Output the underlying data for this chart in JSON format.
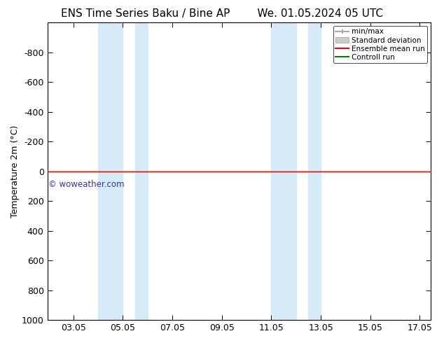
{
  "title_left": "ENS Time Series Baku / Bine AP",
  "title_right": "We. 01.05.2024 05 UTC",
  "ylabel": "Temperature 2m (°C)",
  "xlim": [
    2.0,
    17.5
  ],
  "ylim": [
    1000,
    -1000
  ],
  "yticks": [
    -800,
    -600,
    -400,
    -200,
    0,
    200,
    400,
    600,
    800,
    1000
  ],
  "xtick_labels": [
    "03.05",
    "05.05",
    "07.05",
    "09.05",
    "11.05",
    "13.05",
    "15.05",
    "17.05"
  ],
  "xtick_positions": [
    3.05,
    5.05,
    7.05,
    9.05,
    11.05,
    13.05,
    15.05,
    17.05
  ],
  "shaded_regions": [
    [
      4.05,
      5.05
    ],
    [
      5.55,
      6.05
    ],
    [
      11.05,
      12.05
    ],
    [
      12.55,
      13.05
    ]
  ],
  "shade_color": "#d6eaf8",
  "control_run_y": 0,
  "control_run_color": "#008000",
  "ensemble_mean_color": "#ff0000",
  "watermark": "© woweather.com",
  "watermark_color": "#3333bb",
  "background_color": "#ffffff",
  "plot_bg_color": "#ffffff",
  "title_fontsize": 11,
  "tick_fontsize": 9,
  "ylabel_fontsize": 9
}
